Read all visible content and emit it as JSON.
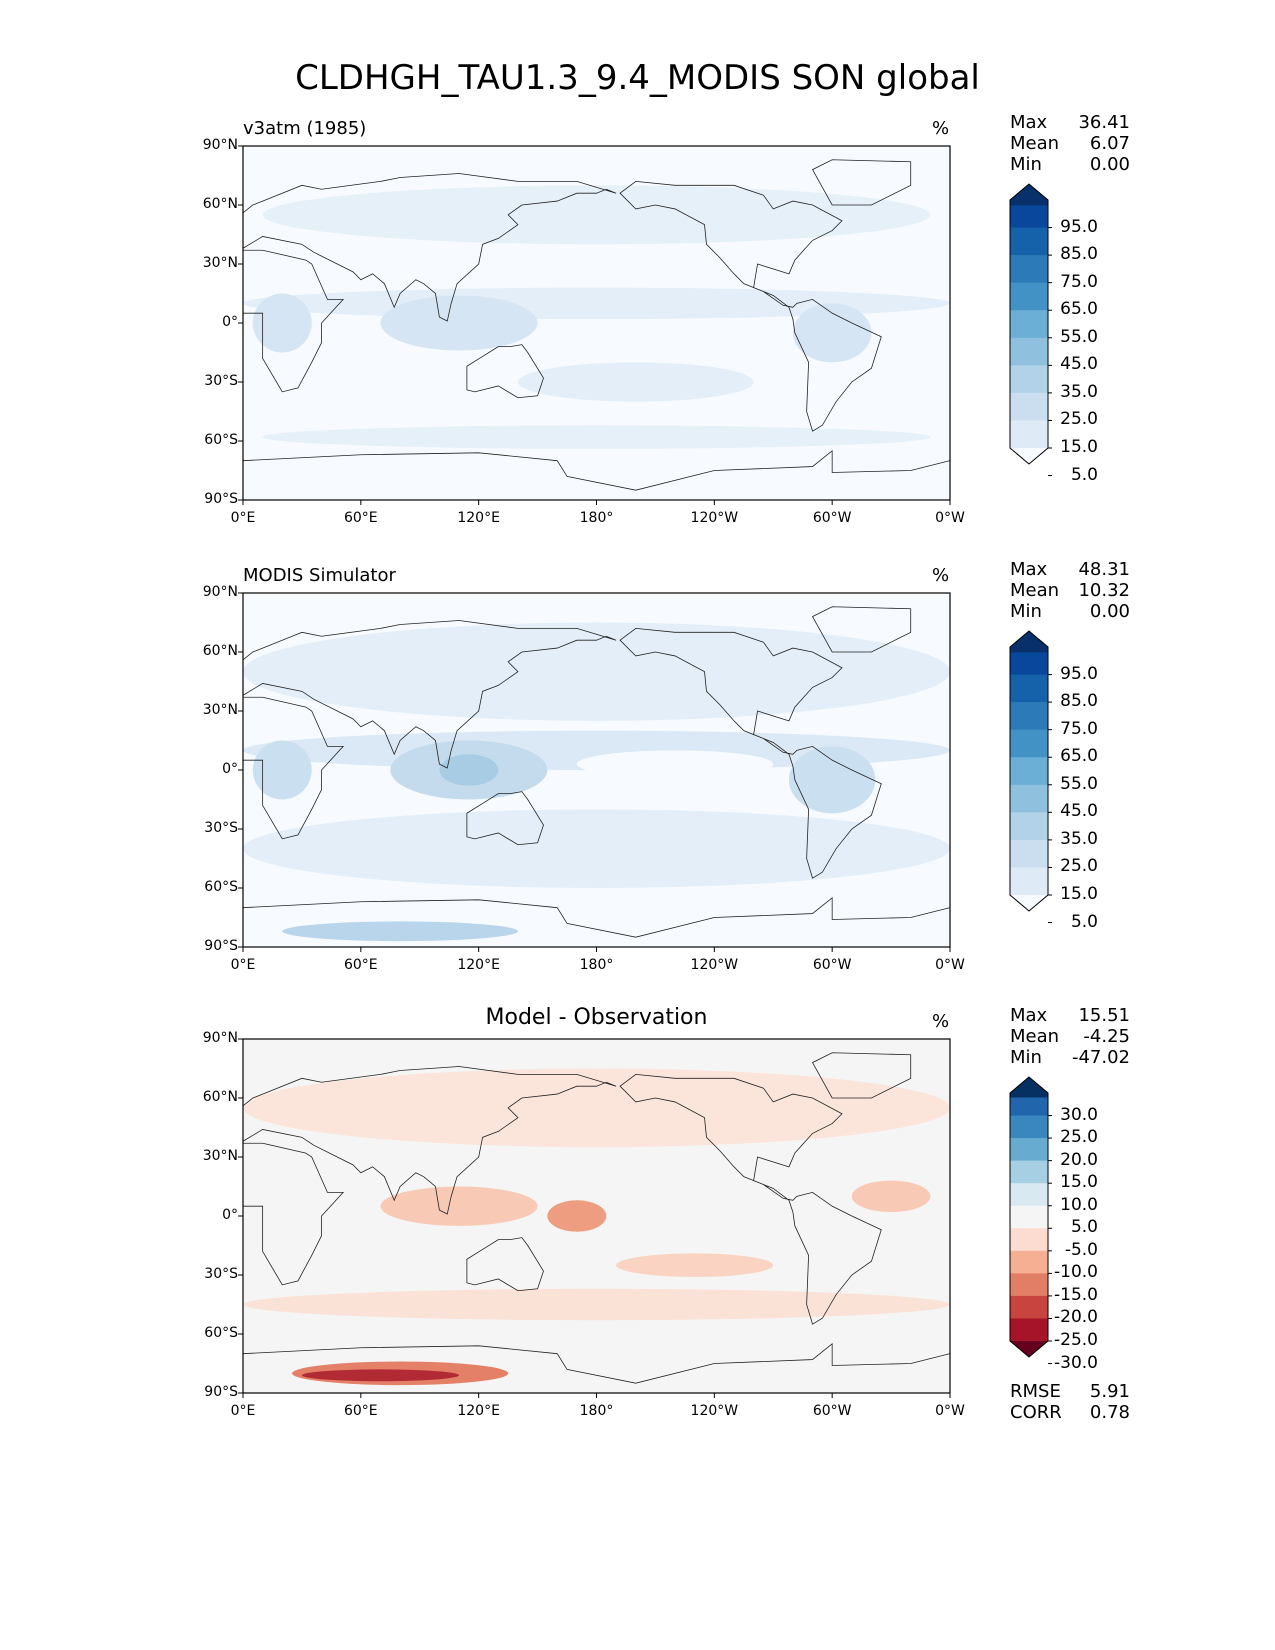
{
  "title": "CLDHGH_TAU1.3_9.4_MODIS SON global",
  "lat_ticks": [
    "90°N",
    "60°N",
    "30°N",
    "0°",
    "30°S",
    "60°S",
    "90°S"
  ],
  "lon_ticks": [
    "0°E",
    "60°E",
    "120°E",
    "180°",
    "120°W",
    "60°W",
    "0°W"
  ],
  "panels": [
    {
      "title": "v3atm (1985)",
      "units": "%",
      "stats": [
        {
          "k": "Max",
          "v": "36.41"
        },
        {
          "k": "Mean",
          "v": "6.07"
        },
        {
          "k": "Min",
          "v": "0.00"
        }
      ],
      "cbar_labels": [
        "95.0",
        "85.0",
        "75.0",
        "65.0",
        "55.0",
        "45.0",
        "35.0",
        "25.0",
        "15.0",
        "5.0"
      ],
      "cbar_colors": [
        "#08306b",
        "#08479c",
        "#1662aa",
        "#2c7bb6",
        "#4292c6",
        "#6baed6",
        "#8fc1de",
        "#b2d2e8",
        "#cadef0",
        "#deebf7",
        "#f7fbff"
      ]
    },
    {
      "title": "MODIS Simulator",
      "units": "%",
      "stats": [
        {
          "k": "Max",
          "v": "48.31"
        },
        {
          "k": "Mean",
          "v": "10.32"
        },
        {
          "k": "Min",
          "v": "0.00"
        }
      ],
      "cbar_labels": [
        "95.0",
        "85.0",
        "75.0",
        "65.0",
        "55.0",
        "45.0",
        "35.0",
        "25.0",
        "15.0",
        "5.0"
      ],
      "cbar_colors": [
        "#08306b",
        "#08479c",
        "#1662aa",
        "#2c7bb6",
        "#4292c6",
        "#6baed6",
        "#8fc1de",
        "#b2d2e8",
        "#cadef0",
        "#deebf7",
        "#f7fbff"
      ]
    },
    {
      "title": "Model - Observation",
      "units": "%",
      "stats": [
        {
          "k": "Max",
          "v": "15.51"
        },
        {
          "k": "Mean",
          "v": "-4.25"
        },
        {
          "k": "Min",
          "v": "-47.02"
        }
      ],
      "cbar_labels": [
        "30.0",
        "25.0",
        "20.0",
        "15.0",
        "10.0",
        "5.0",
        "-5.0",
        "-10.0",
        "-15.0",
        "-20.0",
        "-25.0",
        "-30.0"
      ],
      "cbar_colors": [
        "#053061",
        "#2166ac",
        "#3a87bd",
        "#68abd0",
        "#a7cfe4",
        "#d9e9f1",
        "#f5f5f5",
        "#fcdcd0",
        "#f5b093",
        "#e27e65",
        "#c7443f",
        "#a51429",
        "#67001f"
      ],
      "metrics": [
        {
          "k": "RMSE",
          "v": "5.91"
        },
        {
          "k": "CORR",
          "v": "0.78"
        }
      ]
    }
  ]
}
